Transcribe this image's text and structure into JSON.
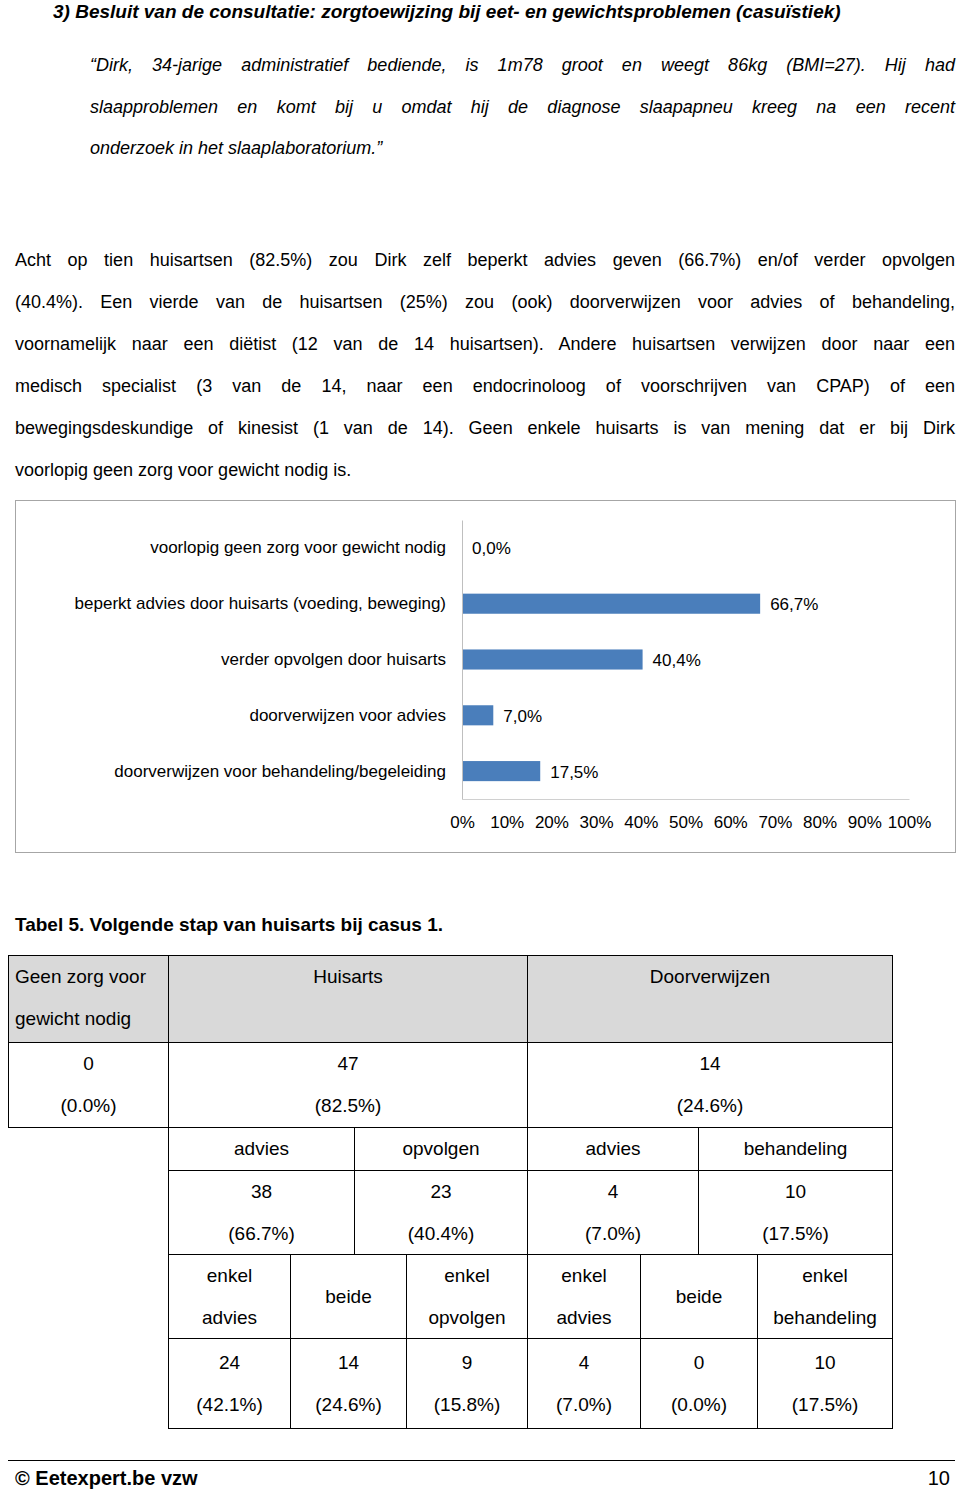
{
  "heading": "3) Besluit van de consultatie: zorgtoewijzing bij eet- en gewichtsproblemen (casuïstiek)",
  "quote": [
    "“Dirk, 34-jarige administratief bediende, is 1m78 groot en weegt 86kg (BMI=27). Hij had",
    "slaapproblemen en komt bij u omdat hij de diagnose slaapapneu kreeg na een recent",
    "onderzoek in het slaaplaboratorium.”"
  ],
  "body": [
    "Acht op tien huisartsen (82.5%) zou Dirk zelf beperkt advies geven (66.7%) en/of verder opvolgen",
    "(40.4%). Een vierde van de huisartsen (25%) zou (ook) doorverwijzen voor advies of behandeling,",
    "voornamelijk naar een diëtist (12 van de 14 huisartsen). Andere huisartsen verwijzen door naar een",
    "medisch specialist (3 van de 14, naar een endocrinoloog of voorschrijven van CPAP) of een",
    "bewegingsdeskundige of kinesist (1 van de 14). Geen enkele huisarts is van mening dat er bij Dirk",
    "voorlopig geen zorg voor gewicht nodig is."
  ],
  "chart_data": {
    "type": "bar",
    "orientation": "horizontal",
    "categories": [
      "voorlopig geen zorg voor gewicht nodig",
      "beperkt advies door huisarts (voeding, beweging)",
      "verder opvolgen door huisarts",
      "doorverwijzen voor advies",
      "doorverwijzen voor behandeling/begeleiding"
    ],
    "values": [
      0.0,
      66.7,
      40.4,
      7.0,
      17.5
    ],
    "value_labels": [
      "0,0%",
      "66,7%",
      "40,4%",
      "7,0%",
      "17,5%"
    ],
    "data_labels": true,
    "color": "#4a7ebb",
    "xlim": [
      0,
      100
    ],
    "xticks": [
      {
        "value": 0,
        "label": "0%"
      },
      {
        "value": 10,
        "label": "10%"
      },
      {
        "value": 20,
        "label": "20%"
      },
      {
        "value": 30,
        "label": "30%"
      },
      {
        "value": 40,
        "label": "40%"
      },
      {
        "value": 50,
        "label": "50%"
      },
      {
        "value": 60,
        "label": "60%"
      },
      {
        "value": 70,
        "label": "70%"
      },
      {
        "value": 80,
        "label": "80%"
      },
      {
        "value": 90,
        "label": "90%"
      },
      {
        "value": 100,
        "label": "100%"
      }
    ],
    "grid": false
  },
  "table": {
    "caption": "Tabel 5. Volgende stap van huisarts bij casus 1.",
    "header": [
      "Geen zorg voor gewicht nodig",
      "Huisarts",
      "Doorverwijzen"
    ],
    "totals": [
      {
        "count": 0,
        "percent": "(0.0%)"
      },
      {
        "count": 47,
        "percent": "(82.5%)"
      },
      {
        "count": 14,
        "percent": "(24.6%)"
      }
    ],
    "subheader": [
      "advies",
      "opvolgen",
      "advies",
      "behandeling"
    ],
    "subtotals": [
      {
        "count": 38,
        "percent": "(66.7%)"
      },
      {
        "count": 23,
        "percent": "(40.4%)"
      },
      {
        "count": 4,
        "percent": "(7.0%)"
      },
      {
        "count": 10,
        "percent": "(17.5%)"
      }
    ],
    "detail_header": [
      "enkel advies",
      "beide",
      "enkel opvolgen",
      "enkel advies",
      "beide",
      "enkel behandeling"
    ],
    "details": [
      {
        "count": 24,
        "percent": "(42.1%)"
      },
      {
        "count": 14,
        "percent": "(24.6%)"
      },
      {
        "count": 9,
        "percent": "(15.8%)"
      },
      {
        "count": 4,
        "percent": "(7.0%)"
      },
      {
        "count": 0,
        "percent": "(0.0%)"
      },
      {
        "count": 10,
        "percent": "(17.5%)"
      }
    ]
  },
  "footer": {
    "left": "© Eetexpert.be vzw",
    "page": 10
  }
}
